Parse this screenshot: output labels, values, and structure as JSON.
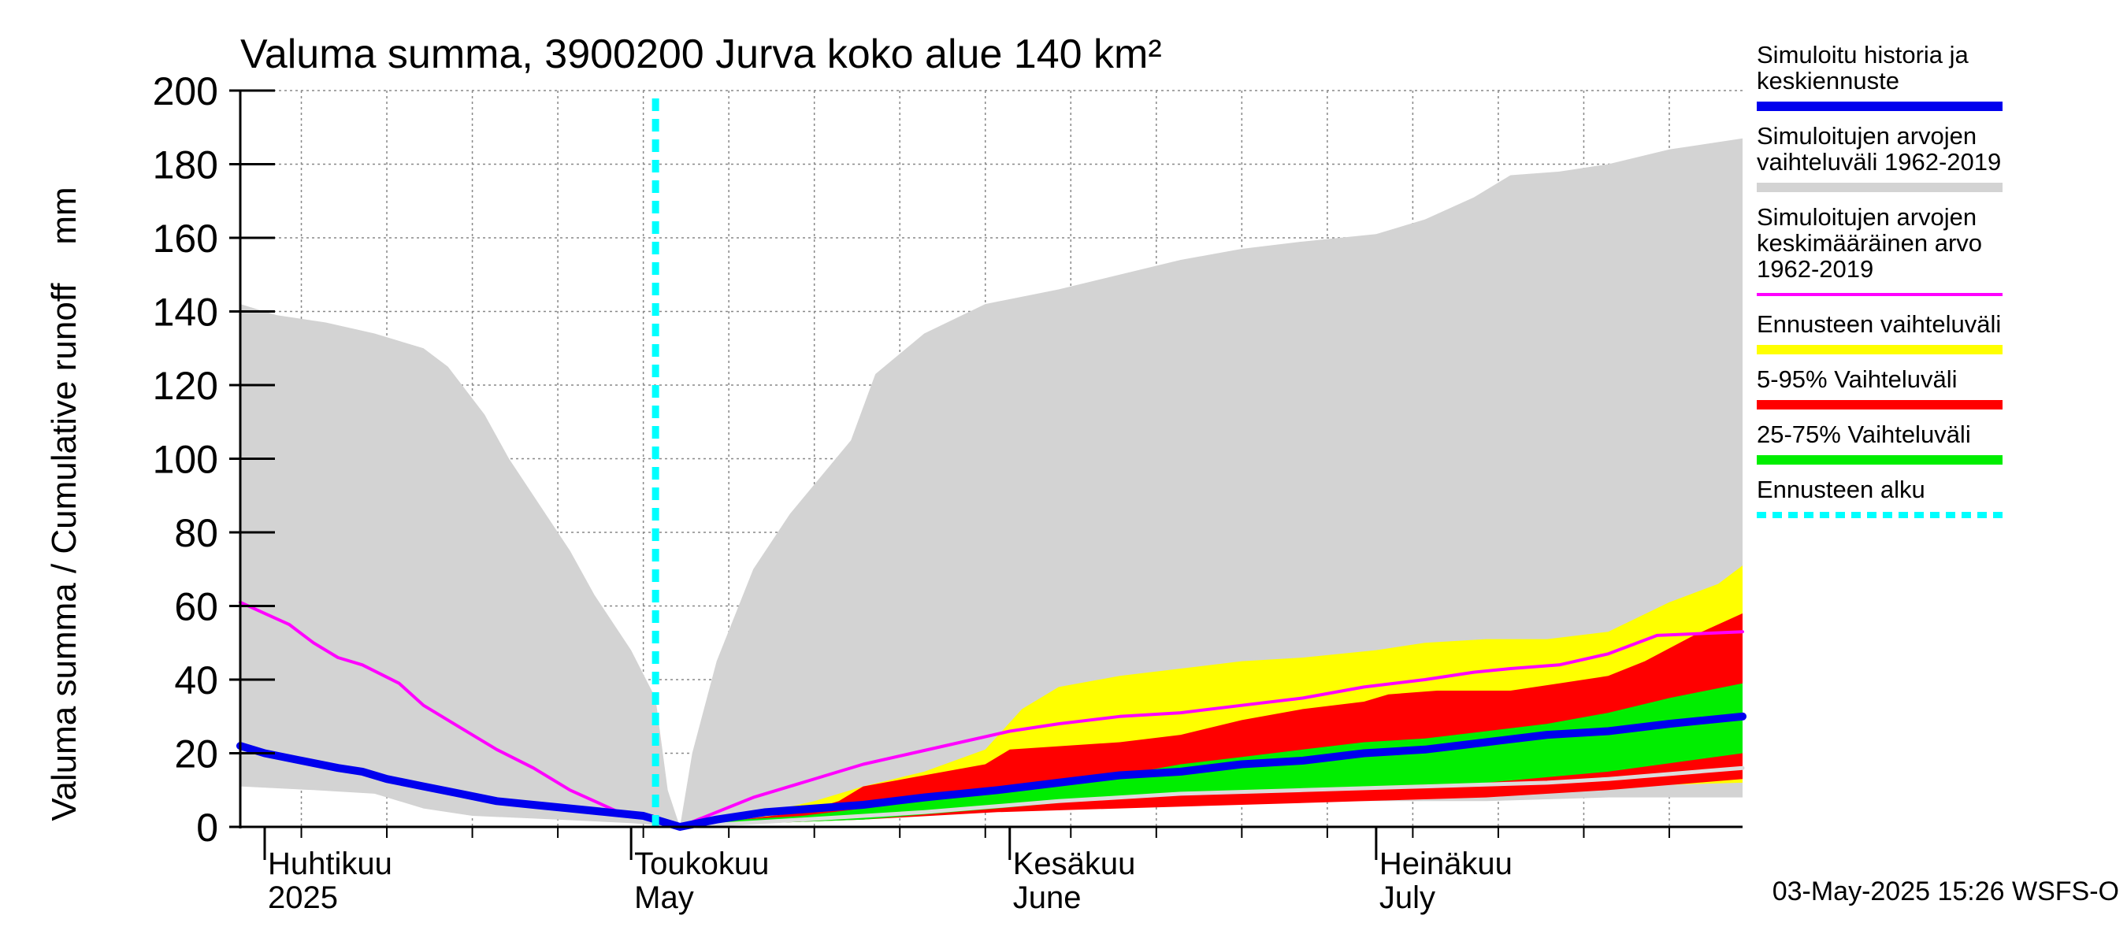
{
  "chart_data": {
    "type": "area",
    "title": "Valuma summa, 3900200 Jurva koko alue 140 km²",
    "ylabel": "Valuma summa / Cumulative runoff    mm",
    "ylim": [
      0,
      200
    ],
    "yticks": [
      0,
      20,
      40,
      60,
      80,
      100,
      120,
      140,
      160,
      180,
      200
    ],
    "xlim": [
      "2025-03-30",
      "2025-07-31"
    ],
    "grid": true,
    "forecast_start": "2025-05-03",
    "month_labels": [
      {
        "date": "2025-04-01",
        "line1": "Huhtikuu",
        "line2": "2025"
      },
      {
        "date": "2025-05-01",
        "line1": "Toukokuu",
        "line2": "May"
      },
      {
        "date": "2025-06-01",
        "line1": "Kesäkuu",
        "line2": "June"
      },
      {
        "date": "2025-07-01",
        "line1": "Heinäkuu",
        "line2": "July"
      }
    ],
    "footer": "03-May-2025 15:26 WSFS-O",
    "legend_position": "right",
    "colors": {
      "history": "#0000ee",
      "range": "#d3d3d3",
      "mean": "#ff00ff",
      "forecast_range": "#ffff00",
      "p5_95": "#ff0000",
      "p25_75": "#00ee00",
      "forecast_start": "#00ffff",
      "median_light": "#dcdcdc"
    },
    "legend": [
      {
        "key": "history",
        "lines": [
          "Simuloitu historia ja",
          "keskiennuste"
        ]
      },
      {
        "key": "range",
        "lines": [
          "Simuloitujen arvojen",
          "vaihteluväli 1962-2019"
        ]
      },
      {
        "key": "mean",
        "lines": [
          "Simuloitujen arvojen",
          "keskimääräinen arvo",
          "   1962-2019"
        ]
      },
      {
        "key": "forecast_range",
        "lines": [
          "Ennusteen vaihteluväli"
        ]
      },
      {
        "key": "p5_95",
        "lines": [
          "5-95% Vaihteluväli"
        ]
      },
      {
        "key": "p25_75",
        "lines": [
          "25-75% Vaihteluväli"
        ]
      },
      {
        "key": "forecast_start",
        "lines": [
          "Ennusteen alku"
        ]
      }
    ],
    "series": {
      "range_upper": [
        [
          "2025-03-30",
          142
        ],
        [
          "2025-04-02",
          139
        ],
        [
          "2025-04-06",
          137
        ],
        [
          "2025-04-10",
          134
        ],
        [
          "2025-04-14",
          130
        ],
        [
          "2025-04-16",
          125
        ],
        [
          "2025-04-19",
          112
        ],
        [
          "2025-04-21",
          100
        ],
        [
          "2025-04-23",
          90
        ],
        [
          "2025-04-26",
          75
        ],
        [
          "2025-04-28",
          63
        ],
        [
          "2025-05-01",
          48
        ],
        [
          "2025-05-03",
          35
        ],
        [
          "2025-05-04",
          10
        ],
        [
          "2025-05-05",
          0
        ],
        [
          "2025-05-06",
          20
        ],
        [
          "2025-05-08",
          45
        ],
        [
          "2025-05-11",
          70
        ],
        [
          "2025-05-14",
          85
        ],
        [
          "2025-05-17",
          97
        ],
        [
          "2025-05-19",
          105
        ],
        [
          "2025-05-21",
          123
        ],
        [
          "2025-05-25",
          134
        ],
        [
          "2025-05-30",
          142
        ],
        [
          "2025-06-05",
          146
        ],
        [
          "2025-06-10",
          150
        ],
        [
          "2025-06-15",
          154
        ],
        [
          "2025-06-20",
          157
        ],
        [
          "2025-06-25",
          159
        ],
        [
          "2025-07-01",
          161
        ],
        [
          "2025-07-05",
          165
        ],
        [
          "2025-07-09",
          171
        ],
        [
          "2025-07-12",
          177
        ],
        [
          "2025-07-16",
          178
        ],
        [
          "2025-07-20",
          180
        ],
        [
          "2025-07-25",
          184
        ],
        [
          "2025-07-31",
          187
        ]
      ],
      "range_lower": [
        [
          "2025-03-30",
          11
        ],
        [
          "2025-04-05",
          10
        ],
        [
          "2025-04-10",
          9
        ],
        [
          "2025-04-14",
          5
        ],
        [
          "2025-04-18",
          3
        ],
        [
          "2025-04-25",
          2
        ],
        [
          "2025-05-01",
          1
        ],
        [
          "2025-05-05",
          0
        ],
        [
          "2025-05-10",
          1
        ],
        [
          "2025-05-15",
          2
        ],
        [
          "2025-05-20",
          3
        ],
        [
          "2025-05-25",
          4
        ],
        [
          "2025-05-31",
          5
        ],
        [
          "2025-06-10",
          6
        ],
        [
          "2025-06-20",
          7
        ],
        [
          "2025-06-30",
          7
        ],
        [
          "2025-07-10",
          7
        ],
        [
          "2025-07-20",
          8
        ],
        [
          "2025-07-31",
          8
        ]
      ],
      "forecast_upper": [
        [
          "2025-05-05",
          0
        ],
        [
          "2025-05-08",
          2
        ],
        [
          "2025-05-12",
          4
        ],
        [
          "2025-05-16",
          7
        ],
        [
          "2025-05-20",
          11
        ],
        [
          "2025-05-25",
          15
        ],
        [
          "2025-05-30",
          21
        ],
        [
          "2025-06-02",
          32
        ],
        [
          "2025-06-05",
          38
        ],
        [
          "2025-06-10",
          41
        ],
        [
          "2025-06-15",
          43
        ],
        [
          "2025-06-20",
          45
        ],
        [
          "2025-06-25",
          46
        ],
        [
          "2025-07-01",
          48
        ],
        [
          "2025-07-05",
          50
        ],
        [
          "2025-07-10",
          51
        ],
        [
          "2025-07-15",
          51
        ],
        [
          "2025-07-20",
          53
        ],
        [
          "2025-07-25",
          61
        ],
        [
          "2025-07-29",
          66
        ],
        [
          "2025-07-31",
          71
        ]
      ],
      "forecast_lower": [
        [
          "2025-05-05",
          0
        ],
        [
          "2025-05-10",
          1
        ],
        [
          "2025-05-15",
          2
        ],
        [
          "2025-05-20",
          3
        ],
        [
          "2025-05-25",
          4
        ],
        [
          "2025-05-31",
          6
        ],
        [
          "2025-06-10",
          8
        ],
        [
          "2025-06-20",
          9
        ],
        [
          "2025-06-30",
          10
        ],
        [
          "2025-07-10",
          10
        ],
        [
          "2025-07-20",
          11
        ],
        [
          "2025-07-31",
          12
        ]
      ],
      "p95": [
        [
          "2025-05-05",
          0
        ],
        [
          "2025-05-10",
          2
        ],
        [
          "2025-05-15",
          4
        ],
        [
          "2025-05-18",
          7
        ],
        [
          "2025-05-20",
          11
        ],
        [
          "2025-05-25",
          14
        ],
        [
          "2025-05-30",
          17
        ],
        [
          "2025-06-01",
          21
        ],
        [
          "2025-06-10",
          23
        ],
        [
          "2025-06-15",
          25
        ],
        [
          "2025-06-20",
          29
        ],
        [
          "2025-06-25",
          32
        ],
        [
          "2025-06-30",
          34
        ],
        [
          "2025-07-02",
          36
        ],
        [
          "2025-07-06",
          37
        ],
        [
          "2025-07-12",
          37
        ],
        [
          "2025-07-16",
          39
        ],
        [
          "2025-07-20",
          41
        ],
        [
          "2025-07-23",
          45
        ],
        [
          "2025-07-27",
          52
        ],
        [
          "2025-07-31",
          58
        ]
      ],
      "p5": [
        [
          "2025-05-05",
          0
        ],
        [
          "2025-05-12",
          1
        ],
        [
          "2025-05-20",
          2
        ],
        [
          "2025-05-31",
          4
        ],
        [
          "2025-06-10",
          5
        ],
        [
          "2025-06-20",
          6
        ],
        [
          "2025-06-30",
          7
        ],
        [
          "2025-07-10",
          8
        ],
        [
          "2025-07-20",
          10
        ],
        [
          "2025-07-31",
          13
        ]
      ],
      "p75": [
        [
          "2025-05-05",
          0
        ],
        [
          "2025-05-10",
          2
        ],
        [
          "2025-05-15",
          3
        ],
        [
          "2025-05-20",
          5
        ],
        [
          "2025-05-25",
          7
        ],
        [
          "2025-05-31",
          9
        ],
        [
          "2025-06-05",
          12
        ],
        [
          "2025-06-10",
          14
        ],
        [
          "2025-06-15",
          17
        ],
        [
          "2025-06-20",
          19
        ],
        [
          "2025-06-25",
          21
        ],
        [
          "2025-06-30",
          23
        ],
        [
          "2025-07-05",
          24
        ],
        [
          "2025-07-10",
          26
        ],
        [
          "2025-07-15",
          28
        ],
        [
          "2025-07-20",
          31
        ],
        [
          "2025-07-25",
          35
        ],
        [
          "2025-07-31",
          39
        ]
      ],
      "p25": [
        [
          "2025-05-05",
          0
        ],
        [
          "2025-05-12",
          1
        ],
        [
          "2025-05-20",
          2
        ],
        [
          "2025-05-31",
          5
        ],
        [
          "2025-06-10",
          8
        ],
        [
          "2025-06-20",
          10
        ],
        [
          "2025-06-30",
          11
        ],
        [
          "2025-07-10",
          12
        ],
        [
          "2025-07-20",
          15
        ],
        [
          "2025-07-31",
          20
        ]
      ],
      "median_light": [
        [
          "2025-05-05",
          0
        ],
        [
          "2025-05-15",
          2
        ],
        [
          "2025-05-25",
          4
        ],
        [
          "2025-06-05",
          7
        ],
        [
          "2025-06-15",
          9
        ],
        [
          "2025-06-25",
          10
        ],
        [
          "2025-07-05",
          11
        ],
        [
          "2025-07-15",
          12
        ],
        [
          "2025-07-20",
          13
        ],
        [
          "2025-07-31",
          16
        ]
      ],
      "mean": [
        [
          "2025-03-30",
          61
        ],
        [
          "2025-04-01",
          58
        ],
        [
          "2025-04-03",
          55
        ],
        [
          "2025-04-05",
          50
        ],
        [
          "2025-04-07",
          46
        ],
        [
          "2025-04-09",
          44
        ],
        [
          "2025-04-12",
          39
        ],
        [
          "2025-04-14",
          33
        ],
        [
          "2025-04-17",
          27
        ],
        [
          "2025-04-20",
          21
        ],
        [
          "2025-04-23",
          16
        ],
        [
          "2025-04-26",
          10
        ],
        [
          "2025-04-30",
          4
        ],
        [
          "2025-05-05",
          0
        ],
        [
          "2025-05-08",
          4
        ],
        [
          "2025-05-11",
          8
        ],
        [
          "2025-05-14",
          11
        ],
        [
          "2025-05-17",
          14
        ],
        [
          "2025-05-20",
          17
        ],
        [
          "2025-05-24",
          20
        ],
        [
          "2025-05-28",
          23
        ],
        [
          "2025-06-01",
          26
        ],
        [
          "2025-06-05",
          28
        ],
        [
          "2025-06-10",
          30
        ],
        [
          "2025-06-15",
          31
        ],
        [
          "2025-06-20",
          33
        ],
        [
          "2025-06-25",
          35
        ],
        [
          "2025-06-30",
          38
        ],
        [
          "2025-07-05",
          40
        ],
        [
          "2025-07-09",
          42
        ],
        [
          "2025-07-12",
          43
        ],
        [
          "2025-07-16",
          44
        ],
        [
          "2025-07-20",
          47
        ],
        [
          "2025-07-24",
          52
        ],
        [
          "2025-07-31",
          53
        ]
      ],
      "history": [
        [
          "2025-03-30",
          22
        ],
        [
          "2025-04-01",
          20
        ],
        [
          "2025-04-04",
          18
        ],
        [
          "2025-04-07",
          16
        ],
        [
          "2025-04-09",
          15
        ],
        [
          "2025-04-11",
          13
        ],
        [
          "2025-04-14",
          11
        ],
        [
          "2025-04-17",
          9
        ],
        [
          "2025-04-20",
          7
        ],
        [
          "2025-04-23",
          6
        ],
        [
          "2025-04-26",
          5
        ],
        [
          "2025-04-29",
          4
        ],
        [
          "2025-05-02",
          3
        ],
        [
          "2025-05-05",
          0
        ],
        [
          "2025-05-08",
          2
        ],
        [
          "2025-05-12",
          4
        ],
        [
          "2025-05-16",
          5
        ],
        [
          "2025-05-20",
          6
        ],
        [
          "2025-05-25",
          8
        ],
        [
          "2025-05-31",
          10
        ],
        [
          "2025-06-05",
          12
        ],
        [
          "2025-06-10",
          14
        ],
        [
          "2025-06-15",
          15
        ],
        [
          "2025-06-20",
          17
        ],
        [
          "2025-06-25",
          18
        ],
        [
          "2025-06-30",
          20
        ],
        [
          "2025-07-05",
          21
        ],
        [
          "2025-07-10",
          23
        ],
        [
          "2025-07-15",
          25
        ],
        [
          "2025-07-20",
          26
        ],
        [
          "2025-07-25",
          28
        ],
        [
          "2025-07-31",
          30
        ]
      ]
    }
  }
}
